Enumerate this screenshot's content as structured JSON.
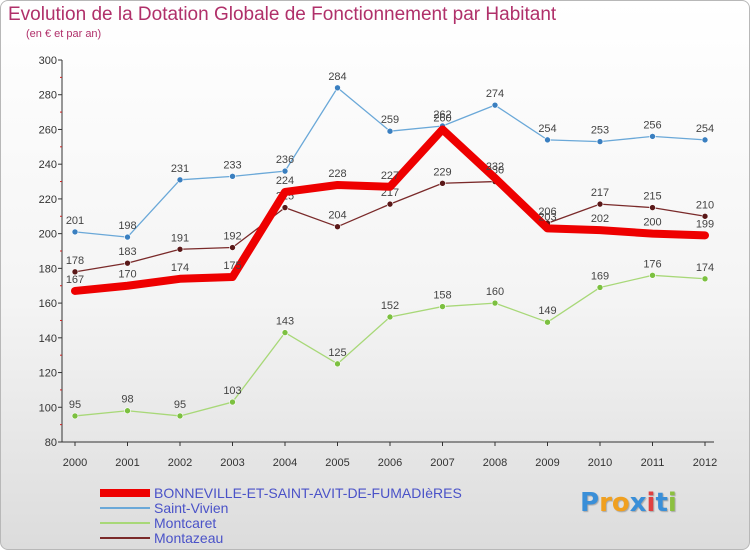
{
  "title": "Evolution de la Dotation Globale de Fonctionnement par Habitant",
  "subtitle": "(en € et par an)",
  "logo": {
    "text": "Proxiti",
    "letters": [
      "P",
      "r",
      "o",
      "x",
      "i",
      "t",
      "i"
    ],
    "colors": [
      "#3a8fd8",
      "#f0a020",
      "#f0a020",
      "#3a8fd8",
      "#e04040",
      "#3a8fd8",
      "#8cc040"
    ]
  },
  "chart_data": {
    "type": "line",
    "title": "Evolution de la Dotation Globale de Fonctionnement par Habitant",
    "xlabel": "",
    "ylabel": "",
    "ylim": [
      80,
      300
    ],
    "yticks": [
      80,
      100,
      120,
      140,
      160,
      180,
      200,
      220,
      240,
      260,
      280,
      300
    ],
    "grid": false,
    "legend_position": "bottom-left",
    "x": [
      "2000",
      "2001",
      "2002",
      "2003",
      "2004",
      "2005",
      "2006",
      "2007",
      "2008",
      "2009",
      "2010",
      "2011",
      "2012"
    ],
    "series": [
      {
        "name": "BONNEVILLE-ET-SAINT-AVIT-DE-FUMADIèRES",
        "color": "#ee0000",
        "emphasis": true,
        "values": [
          167,
          170,
          174,
          175,
          224,
          228,
          227,
          260,
          232,
          203,
          202,
          200,
          199
        ]
      },
      {
        "name": "Saint-Vivien",
        "color": "#6aa8d8",
        "marker_color": "#3a7fc0",
        "values": [
          201,
          198,
          231,
          233,
          236,
          284,
          259,
          262,
          274,
          254,
          253,
          256,
          254
        ]
      },
      {
        "name": "Montcaret",
        "color": "#a8d878",
        "marker_color": "#7cc040",
        "values": [
          95,
          98,
          95,
          103,
          143,
          125,
          152,
          158,
          160,
          149,
          169,
          176,
          174
        ]
      },
      {
        "name": "Montazeau",
        "color": "#7a2a2a",
        "marker_color": "#5a1818",
        "values": [
          178,
          183,
          191,
          192,
          215,
          204,
          217,
          229,
          230,
          206,
          217,
          215,
          210
        ]
      }
    ]
  }
}
